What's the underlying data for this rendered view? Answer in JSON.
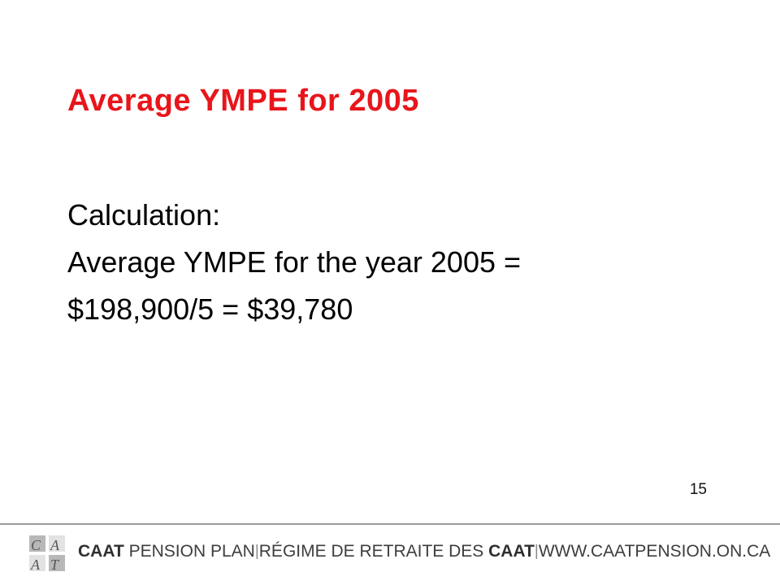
{
  "slide": {
    "title": "Average YMPE for 2005",
    "lines": [
      "Calculation:",
      "Average YMPE for the year 2005 =",
      "$198,900/5 = $39,780"
    ],
    "page_number": "15"
  },
  "footer": {
    "logo_text": "CAAT",
    "plan_bold": "CAAT",
    "plan_rest": " PENSION PLAN",
    "separator": "|",
    "french_rest": "RÉGIME DE RETRAITE DES ",
    "french_bold": "CAAT",
    "website": "WWW.CAATPENSION.ON.CA"
  },
  "colors": {
    "title": "#e8151b",
    "footer_text": "#3d3d3d",
    "rule": "#9a9a9a"
  }
}
